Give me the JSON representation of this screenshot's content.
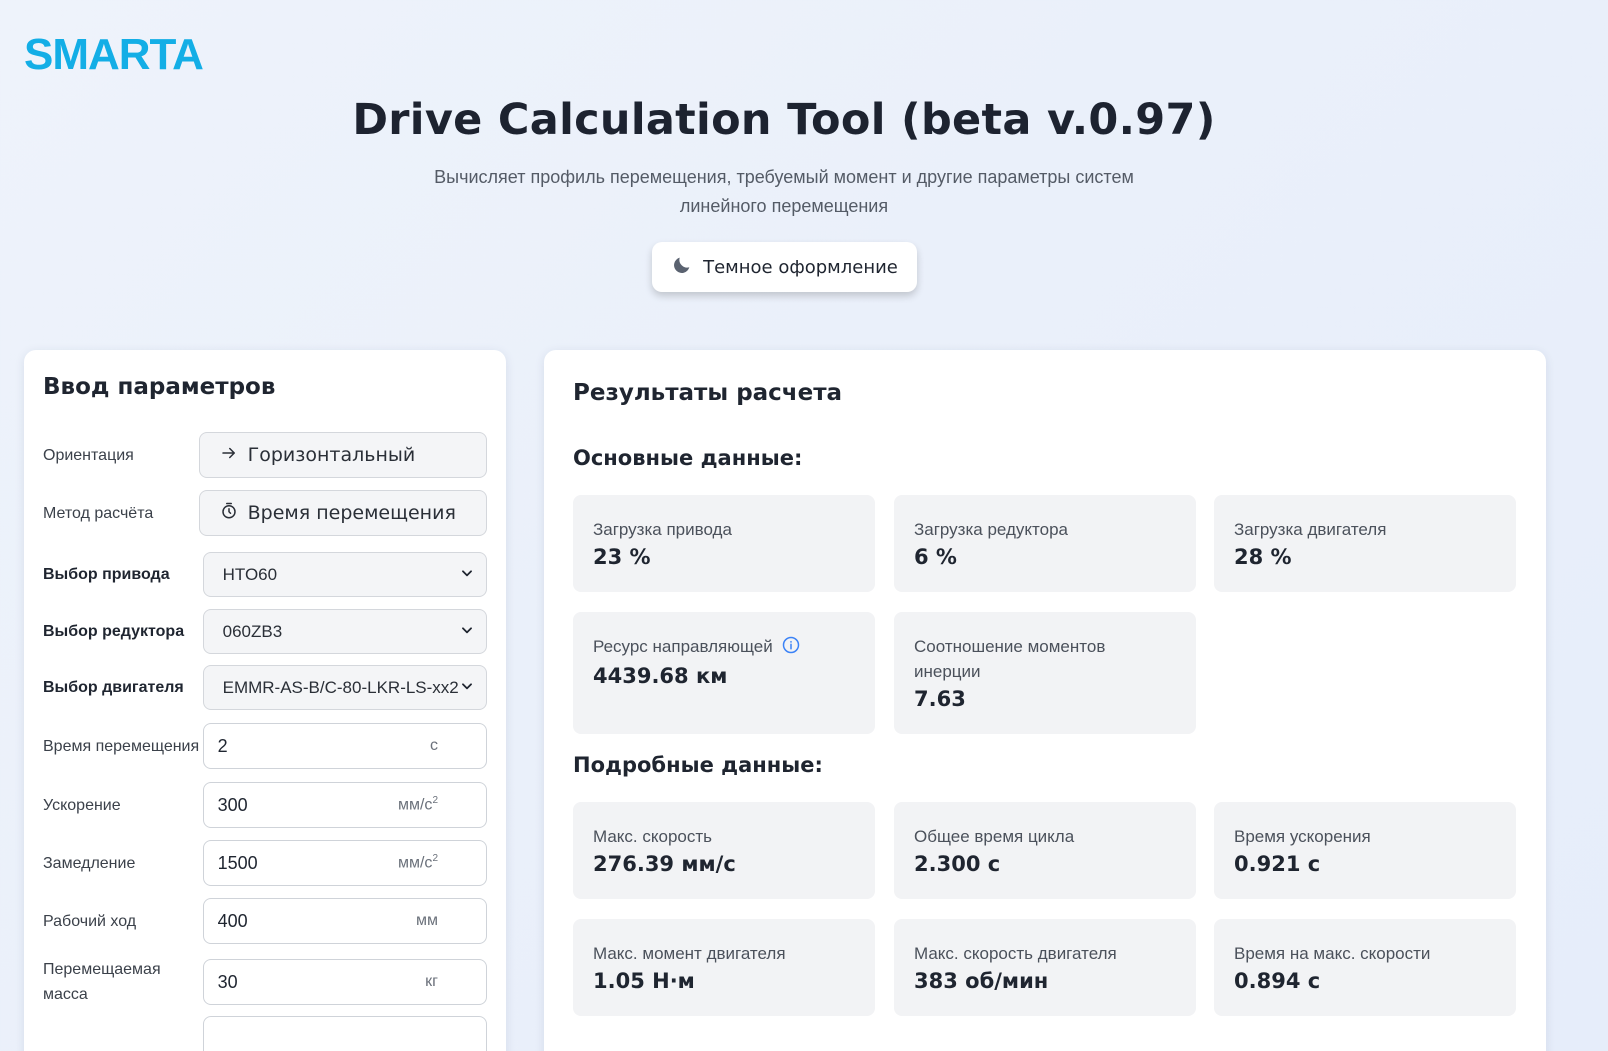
{
  "brand": {
    "logo_text": "SMARTA",
    "color": "#13aee6"
  },
  "header": {
    "title": "Drive Calculation Tool (beta v.0.97)",
    "subtitle": "Вычисляет профиль перемещения, требуемый момент и другие параметры систем линейного перемещения",
    "theme_button": "Темное оформление",
    "theme_icon": "moon-icon"
  },
  "input_panel": {
    "title": "Ввод параметров",
    "orientation": {
      "label": "Ориентация",
      "value": "Горизонтальный",
      "icon": "arrow-right-icon"
    },
    "method": {
      "label": "Метод расчёта",
      "value": "Время перемещения",
      "icon": "timer-icon"
    },
    "drive": {
      "label": "Выбор привода",
      "value": "HTO60"
    },
    "gearbox": {
      "label": "Выбор редуктора",
      "value": "060ZB3"
    },
    "motor": {
      "label": "Выбор двигателя",
      "value": "EMMR-AS-B/C-80-LKR-LS-xx2"
    },
    "move_time": {
      "label": "Время перемещения",
      "value": "2",
      "unit": "с"
    },
    "acceleration": {
      "label": "Ускорение",
      "value": "300",
      "unit": "мм/с",
      "unit_sup": "2"
    },
    "deceleration": {
      "label": "Замедление",
      "value": "1500",
      "unit": "мм/с",
      "unit_sup": "2"
    },
    "stroke": {
      "label": "Рабочий ход",
      "value": "400",
      "unit": "мм"
    },
    "mass": {
      "label": "Перемещаемая масса",
      "value": "30",
      "unit": "кг"
    }
  },
  "results_panel": {
    "title": "Результаты расчета",
    "main_section": "Основные данные:",
    "main": [
      {
        "label": "Загрузка привода",
        "value": "23 %"
      },
      {
        "label": "Загрузка редуктора",
        "value": "6 %"
      },
      {
        "label": "Загрузка двигателя",
        "value": "28 %"
      },
      {
        "label": "Ресурс направляющей",
        "value": "4439.68 км"
      },
      {
        "label": "Соотношение моментов инерции",
        "value": "7.63"
      }
    ],
    "detail_section": "Подробные данные:",
    "details": [
      {
        "label": "Макс. скорость",
        "value": "276.39 мм/с"
      },
      {
        "label": "Общее время цикла",
        "value": "2.300 с"
      },
      {
        "label": "Время ускорения",
        "value": "0.921 с"
      },
      {
        "label": "Макс. момент двигателя",
        "value": "1.05 Н·м"
      },
      {
        "label": "Макс. скорость двигателя",
        "value": "383 об/мин"
      },
      {
        "label": "Время на макс. скорости",
        "value": "0.894 с"
      }
    ]
  }
}
